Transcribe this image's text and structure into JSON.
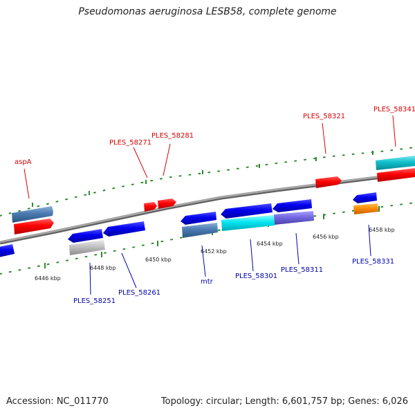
{
  "title": "Pseudomonas aeruginosa LESB58, complete genome",
  "footer": {
    "accession": "Accession: NC_011770",
    "summary": "Topology: circular; Length: 6,601,757 bp; Genes: 6,026"
  },
  "colors": {
    "backbone": "#8a8a8a",
    "ruler": "#2a8a2a",
    "label_forward": "#d40000",
    "label_reverse": "#0000aa"
  },
  "scale_labels": [
    "6446 kbp",
    "6448 kbp",
    "6450 kbp",
    "6452 kbp",
    "6454 kbp",
    "6456 kbp",
    "6458 kbp"
  ],
  "forward_labels": [
    "aspA",
    "PLES_58271",
    "PLES_58281",
    "PLES_58321",
    "PLES_58341"
  ],
  "reverse_labels": [
    "PLES_58251",
    "PLES_58261",
    "mtr",
    "PLES_58301",
    "PLES_58311",
    "PLES_58331"
  ]
}
